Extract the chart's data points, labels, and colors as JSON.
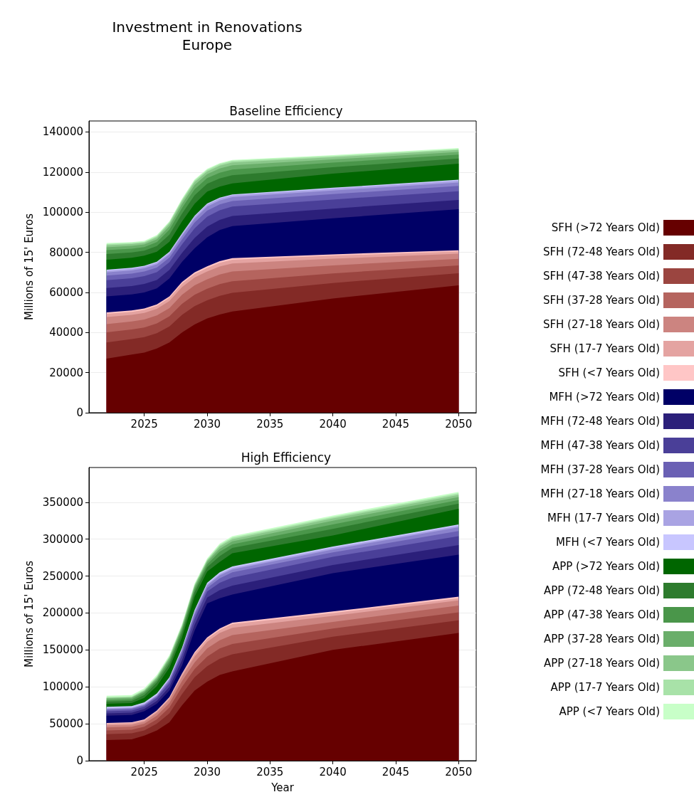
{
  "chart_data": [
    {
      "type": "area",
      "stacked": true,
      "title": "Investment in Renovations\nEurope",
      "subtitle": "Baseline Efficiency",
      "ylabel": "Millions of 15' Euros",
      "x": [
        2022,
        2024,
        2025,
        2026,
        2027,
        2028,
        2029,
        2030,
        2031,
        2032,
        2040,
        2050
      ],
      "xlim": [
        2020.6,
        2051.4
      ],
      "xticks": [
        2025,
        2030,
        2035,
        2040,
        2045,
        2050
      ],
      "ylim": [
        0,
        145500
      ],
      "yticks": [
        0,
        20000,
        40000,
        60000,
        80000,
        100000,
        120000,
        140000
      ],
      "grid": "y",
      "legend": "right",
      "series": [
        {
          "name": "SFH (>72 Years Old)",
          "color": "#660000",
          "values": [
            27000,
            29000,
            30000,
            32000,
            35000,
            40000,
            44000,
            47000,
            49000,
            50500,
            57000,
            63500
          ]
        },
        {
          "name": "SFH (72-48 Years Old)",
          "color": "#832a26",
          "values": [
            8000,
            7700,
            7700,
            7700,
            8000,
            8800,
            9100,
            9100,
            9300,
            9300,
            7700,
            6100
          ]
        },
        {
          "name": "SFH (47-38 Years Old)",
          "color": "#9b4540",
          "values": [
            5100,
            4800,
            4800,
            4800,
            5100,
            5500,
            5700,
            5700,
            5800,
            5800,
            4800,
            3900
          ]
        },
        {
          "name": "SFH (37-28 Years Old)",
          "color": "#b5645e",
          "values": [
            4100,
            4000,
            4000,
            4000,
            4100,
            4500,
            4700,
            4700,
            4800,
            4800,
            4000,
            3200
          ]
        },
        {
          "name": "SFH (27-18 Years Old)",
          "color": "#cc8480",
          "values": [
            3500,
            3300,
            3300,
            3300,
            3500,
            3800,
            3900,
            3900,
            4000,
            4000,
            3300,
            2600
          ]
        },
        {
          "name": "SFH (17-7 Years Old)",
          "color": "#e4a3a1",
          "values": [
            1600,
            1500,
            1500,
            1500,
            1600,
            1800,
            1800,
            1800,
            1900,
            1900,
            1500,
            1200
          ]
        },
        {
          "name": "SFH (<7 Years Old)",
          "color": "#ffc6c6",
          "values": [
            700,
            700,
            700,
            700,
            700,
            800,
            800,
            800,
            800,
            800,
            700,
            500
          ]
        },
        {
          "name": "MFH (>72 Years Old)",
          "color": "#000066",
          "values": [
            8000,
            8000,
            8000,
            8000,
            9000,
            10000,
            12000,
            14500,
            15500,
            16000,
            18000,
            20500
          ]
        },
        {
          "name": "MFH (72-48 Years Old)",
          "color": "#2b1f7a",
          "values": [
            4200,
            4200,
            4200,
            4200,
            4200,
            4500,
            5100,
            5300,
            5100,
            5000,
            4800,
            4600
          ]
        },
        {
          "name": "MFH (47-38 Years Old)",
          "color": "#4a3f98",
          "values": [
            3900,
            3900,
            3900,
            3900,
            3900,
            4200,
            4800,
            5000,
            4800,
            4700,
            4500,
            4400
          ]
        },
        {
          "name": "MFH (37-28 Years Old)",
          "color": "#6a60b4",
          "values": [
            2300,
            2300,
            2300,
            2300,
            2300,
            2500,
            2900,
            3000,
            2900,
            2800,
            2700,
            2600
          ]
        },
        {
          "name": "MFH (27-18 Years Old)",
          "color": "#8a82cc",
          "values": [
            1600,
            1600,
            1600,
            1600,
            1600,
            1700,
            1900,
            2000,
            1900,
            1900,
            1800,
            1700
          ]
        },
        {
          "name": "MFH (17-7 Years Old)",
          "color": "#a9a3e3",
          "values": [
            800,
            800,
            800,
            800,
            800,
            800,
            1000,
            1000,
            1000,
            900,
            900,
            900
          ]
        },
        {
          "name": "MFH (<7 Years Old)",
          "color": "#c8c6ff",
          "values": [
            500,
            500,
            500,
            500,
            500,
            500,
            500,
            500,
            500,
            500,
            500,
            500
          ]
        },
        {
          "name": "APP (>72 Years Old)",
          "color": "#006600",
          "values": [
            5000,
            5000,
            5000,
            5000,
            5000,
            6000,
            6000,
            6000,
            5500,
            5500,
            7000,
            8000
          ]
        },
        {
          "name": "APP (72-48 Years Old)",
          "color": "#2d7b2d",
          "values": [
            2800,
            2600,
            2500,
            2800,
            3500,
            3900,
            4200,
            3900,
            4000,
            4000,
            3200,
            2600
          ]
        },
        {
          "name": "APP (47-38 Years Old)",
          "color": "#4a964a",
          "values": [
            2000,
            1900,
            1800,
            2000,
            2500,
            2800,
            3000,
            2800,
            2900,
            2900,
            2300,
            1900
          ]
        },
        {
          "name": "APP (37-28 Years Old)",
          "color": "#6aae6a",
          "values": [
            1400,
            1400,
            1300,
            1400,
            1800,
            2000,
            2200,
            2000,
            2100,
            2100,
            1600,
            1400
          ]
        },
        {
          "name": "APP (27-18 Years Old)",
          "color": "#8ac78a",
          "values": [
            1000,
            900,
            800,
            1000,
            1200,
            1300,
            1400,
            1300,
            1400,
            1400,
            1100,
            900
          ]
        },
        {
          "name": "APP (17-7 Years Old)",
          "color": "#a8e2a8",
          "values": [
            600,
            500,
            500,
            600,
            700,
            800,
            800,
            800,
            800,
            800,
            600,
            500
          ]
        },
        {
          "name": "APP (<7 Years Old)",
          "color": "#c8ffc8",
          "values": [
            500,
            500,
            500,
            500,
            500,
            500,
            500,
            500,
            500,
            500,
            500,
            500
          ]
        }
      ]
    },
    {
      "type": "area",
      "stacked": true,
      "subtitle": "High Efficiency",
      "xlabel": "Year",
      "ylabel": "Millions of 15' Euros",
      "x": [
        2022,
        2024,
        2025,
        2026,
        2027,
        2028,
        2029,
        2030,
        2031,
        2032,
        2040,
        2050
      ],
      "xlim": [
        2020.6,
        2051.4
      ],
      "xticks": [
        2025,
        2030,
        2035,
        2040,
        2045,
        2050
      ],
      "ylim": [
        0,
        397000
      ],
      "yticks": [
        0,
        50000,
        100000,
        150000,
        200000,
        250000,
        300000,
        350000
      ],
      "grid": "y",
      "series": [
        {
          "name": "SFH (>72 Years Old)",
          "color": "#660000",
          "values": [
            28000,
            29000,
            34000,
            41000,
            52000,
            75000,
            95000,
            107000,
            116000,
            121000,
            150000,
            173000
          ]
        },
        {
          "name": "SFH (72-48 Years Old)",
          "color": "#832a26",
          "values": [
            8000,
            8000,
            7000,
            9000,
            12000,
            15000,
            18000,
            21000,
            22000,
            23000,
            18000,
            17000
          ]
        },
        {
          "name": "SFH (47-38 Years Old)",
          "color": "#9b4540",
          "values": [
            5000,
            5000,
            5000,
            6000,
            8000,
            10000,
            11000,
            13000,
            14000,
            14000,
            11000,
            11000
          ]
        },
        {
          "name": "SFH (37-28 Years Old)",
          "color": "#b5645e",
          "values": [
            4000,
            4000,
            4000,
            5000,
            6000,
            8000,
            9000,
            11000,
            11000,
            12000,
            9000,
            9000
          ]
        },
        {
          "name": "SFH (27-18 Years Old)",
          "color": "#cc8480",
          "values": [
            3000,
            3000,
            3000,
            4000,
            5000,
            6000,
            8000,
            9000,
            10000,
            10000,
            8000,
            7000
          ]
        },
        {
          "name": "SFH (17-7 Years Old)",
          "color": "#e4a3a1",
          "values": [
            2000,
            2000,
            2000,
            2000,
            2000,
            3000,
            4000,
            4000,
            4000,
            5000,
            4000,
            3000
          ]
        },
        {
          "name": "SFH (<7 Years Old)",
          "color": "#ffc6c6",
          "values": [
            1000,
            1000,
            1000,
            1000,
            1000,
            1000,
            2000,
            2000,
            2000,
            2000,
            2000,
            2000
          ]
        },
        {
          "name": "MFH (>72 Years Old)",
          "color": "#000066",
          "values": [
            10000,
            10000,
            11000,
            9000,
            9000,
            11000,
            29000,
            46000,
            41000,
            38000,
            52000,
            57000
          ]
        },
        {
          "name": "MFH (72-48 Years Old)",
          "color": "#2b1f7a",
          "values": [
            3000,
            3000,
            3000,
            4000,
            5000,
            7000,
            8000,
            8000,
            11000,
            12000,
            11000,
            13000
          ]
        },
        {
          "name": "MFH (47-38 Years Old)",
          "color": "#4a3f98",
          "values": [
            3000,
            3000,
            3000,
            4000,
            5000,
            7000,
            8000,
            8000,
            10000,
            11000,
            11000,
            12000
          ]
        },
        {
          "name": "MFH (37-28 Years Old)",
          "color": "#6a60b4",
          "values": [
            2000,
            2000,
            2000,
            2000,
            3000,
            4000,
            5000,
            5000,
            6000,
            7000,
            6000,
            7000
          ]
        },
        {
          "name": "MFH (27-18 Years Old)",
          "color": "#8a82cc",
          "values": [
            1000,
            1000,
            1000,
            1000,
            2000,
            3000,
            3000,
            3000,
            4000,
            4000,
            4000,
            5000
          ]
        },
        {
          "name": "MFH (17-7 Years Old)",
          "color": "#a9a3e3",
          "values": [
            1000,
            1000,
            1000,
            1000,
            1000,
            1000,
            2000,
            2000,
            2000,
            2000,
            2000,
            2000
          ]
        },
        {
          "name": "MFH (<7 Years Old)",
          "color": "#c8c6ff",
          "values": [
            2000,
            2000,
            2000,
            2000,
            2000,
            2000,
            2000,
            2000,
            2000,
            2000,
            2000,
            2000
          ]
        },
        {
          "name": "APP (>72 Years Old)",
          "color": "#006600",
          "values": [
            4000,
            4000,
            6000,
            10000,
            13000,
            14000,
            18000,
            15000,
            14000,
            18000,
            15000,
            21000
          ]
        },
        {
          "name": "APP (72-48 Years Old)",
          "color": "#2d7b2d",
          "values": [
            3000,
            3000,
            4000,
            5000,
            5000,
            6000,
            6000,
            6000,
            8000,
            7000,
            9000,
            7000
          ]
        },
        {
          "name": "APP (47-38 Years Old)",
          "color": "#4a964a",
          "values": [
            2000,
            2000,
            3000,
            3000,
            4000,
            4000,
            4000,
            4000,
            6000,
            5000,
            6000,
            5000
          ]
        },
        {
          "name": "APP (37-28 Years Old)",
          "color": "#6aae6a",
          "values": [
            2000,
            2000,
            2000,
            2000,
            3000,
            3000,
            3000,
            3000,
            4000,
            4000,
            5000,
            4000
          ]
        },
        {
          "name": "APP (27-18 Years Old)",
          "color": "#8ac78a",
          "values": [
            1000,
            1000,
            1000,
            2000,
            2000,
            2000,
            2000,
            2000,
            3000,
            3000,
            3000,
            3000
          ]
        },
        {
          "name": "APP (17-7 Years Old)",
          "color": "#a8e2a8",
          "values": [
            1000,
            1000,
            1000,
            1000,
            1000,
            1000,
            1000,
            1000,
            2000,
            2000,
            2000,
            2000
          ]
        },
        {
          "name": "APP (<7 Years Old)",
          "color": "#c8ffc8",
          "values": [
            2000,
            2000,
            2000,
            2000,
            2000,
            2000,
            2000,
            2000,
            2000,
            2000,
            2000,
            2000
          ]
        }
      ]
    }
  ]
}
